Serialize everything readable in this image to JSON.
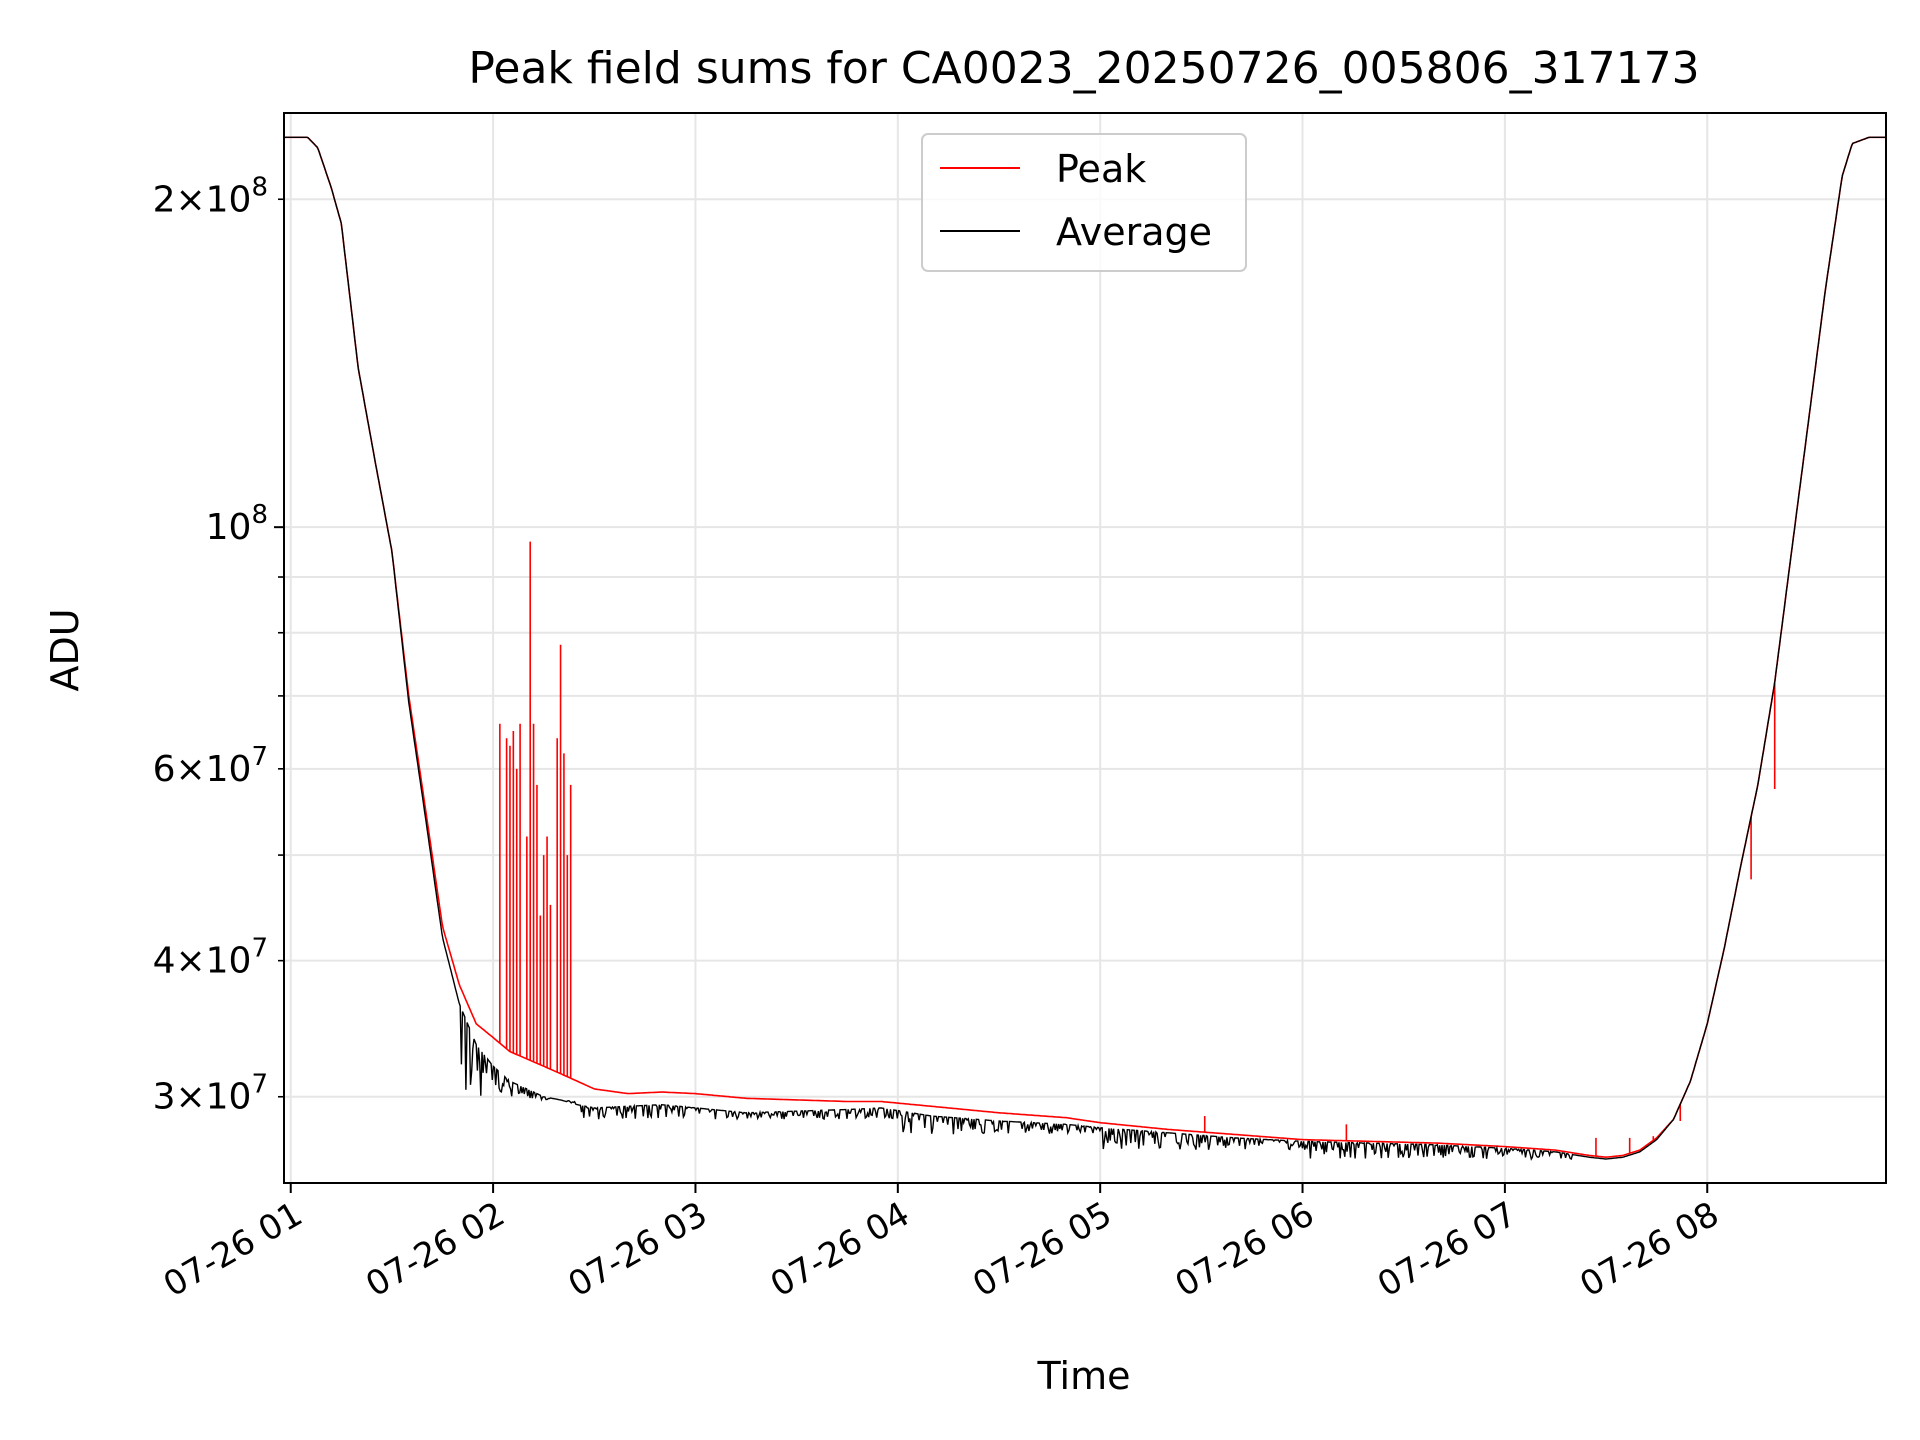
{
  "chart_data": {
    "type": "line",
    "title": "Peak field sums for CA0023_20250726_005806_317173",
    "xlabel": "Time",
    "ylabel": "ADU",
    "yscale": "log",
    "ylim": [
      25000000,
      240000000
    ],
    "xlim": [
      "2025-07-26 00:58",
      "2025-07-26 08:53"
    ],
    "grid": true,
    "legend_position": "upper center",
    "x_ticks": [
      {
        "x": "2025-07-26 01:00",
        "label": "07-26 01"
      },
      {
        "x": "2025-07-26 02:00",
        "label": "07-26 02"
      },
      {
        "x": "2025-07-26 03:00",
        "label": "07-26 03"
      },
      {
        "x": "2025-07-26 04:00",
        "label": "07-26 04"
      },
      {
        "x": "2025-07-26 05:00",
        "label": "07-26 05"
      },
      {
        "x": "2025-07-26 06:00",
        "label": "07-26 06"
      },
      {
        "x": "2025-07-26 07:00",
        "label": "07-26 07"
      },
      {
        "x": "2025-07-26 08:00",
        "label": "07-26 08"
      }
    ],
    "y_major_ticks": [
      {
        "value": 100000000,
        "base": "10",
        "exp": "8"
      }
    ],
    "y_minor_ticks": [
      {
        "value": 30000000,
        "mant": "3",
        "exp": "7"
      },
      {
        "value": 40000000,
        "mant": "4",
        "exp": "7"
      },
      {
        "value": 50000000,
        "mant": "",
        "exp": ""
      },
      {
        "value": 60000000,
        "mant": "6",
        "exp": "7"
      },
      {
        "value": 70000000,
        "mant": "",
        "exp": ""
      },
      {
        "value": 80000000,
        "mant": "",
        "exp": ""
      },
      {
        "value": 90000000,
        "mant": "",
        "exp": ""
      },
      {
        "value": 200000000,
        "mant": "2",
        "exp": "8"
      }
    ],
    "series": [
      {
        "name": "Peak",
        "color": "#ff0000",
        "x": [
          "2025-07-26 00:58",
          "2025-07-26 01:05",
          "2025-07-26 01:08",
          "2025-07-26 01:12",
          "2025-07-26 01:15",
          "2025-07-26 01:20",
          "2025-07-26 01:25",
          "2025-07-26 01:30",
          "2025-07-26 01:35",
          "2025-07-26 01:40",
          "2025-07-26 01:45",
          "2025-07-26 01:50",
          "2025-07-26 01:55",
          "2025-07-26 02:00",
          "2025-07-26 02:05",
          "2025-07-26 02:10",
          "2025-07-26 02:15",
          "2025-07-26 02:20",
          "2025-07-26 02:25",
          "2025-07-26 02:30",
          "2025-07-26 02:40",
          "2025-07-26 02:50",
          "2025-07-26 03:00",
          "2025-07-26 03:15",
          "2025-07-26 03:30",
          "2025-07-26 03:45",
          "2025-07-26 03:55",
          "2025-07-26 04:10",
          "2025-07-26 04:30",
          "2025-07-26 04:50",
          "2025-07-26 05:00",
          "2025-07-26 05:20",
          "2025-07-26 05:40",
          "2025-07-26 06:00",
          "2025-07-26 06:20",
          "2025-07-26 06:40",
          "2025-07-26 07:00",
          "2025-07-26 07:15",
          "2025-07-26 07:25",
          "2025-07-26 07:30",
          "2025-07-26 07:35",
          "2025-07-26 07:40",
          "2025-07-26 07:45",
          "2025-07-26 07:50",
          "2025-07-26 07:55",
          "2025-07-26 08:00",
          "2025-07-26 08:05",
          "2025-07-26 08:10",
          "2025-07-26 08:15",
          "2025-07-26 08:20",
          "2025-07-26 08:25",
          "2025-07-26 08:30",
          "2025-07-26 08:35",
          "2025-07-26 08:40",
          "2025-07-26 08:43",
          "2025-07-26 08:48",
          "2025-07-26 08:53"
        ],
        "y": [
          228000000,
          228000000,
          223000000,
          205000000,
          190000000,
          140000000,
          115000000,
          95000000,
          70000000,
          55000000,
          43000000,
          38000000,
          35000000,
          34000000,
          33000000,
          32500000,
          32000000,
          31500000,
          31000000,
          30500000,
          30200000,
          30300000,
          30200000,
          29900000,
          29800000,
          29700000,
          29700000,
          29400000,
          29000000,
          28700000,
          28400000,
          28000000,
          27700000,
          27400000,
          27300000,
          27200000,
          27000000,
          26800000,
          26500000,
          26400000,
          26500000,
          26800000,
          27500000,
          28600000,
          31000000,
          35000000,
          41000000,
          49000000,
          58000000,
          72000000,
          95000000,
          125000000,
          165000000,
          210000000,
          225000000,
          228000000,
          228000000
        ],
        "spikes": [
          {
            "x": "2025-07-26 02:02",
            "y": 66000000
          },
          {
            "x": "2025-07-26 02:04",
            "y": 64000000
          },
          {
            "x": "2025-07-26 02:05",
            "y": 63000000
          },
          {
            "x": "2025-07-26 02:06",
            "y": 65000000
          },
          {
            "x": "2025-07-26 02:07",
            "y": 60000000
          },
          {
            "x": "2025-07-26 02:08",
            "y": 66000000
          },
          {
            "x": "2025-07-26 02:10",
            "y": 52000000
          },
          {
            "x": "2025-07-26 02:11",
            "y": 97000000
          },
          {
            "x": "2025-07-26 02:12",
            "y": 66000000
          },
          {
            "x": "2025-07-26 02:13",
            "y": 58000000
          },
          {
            "x": "2025-07-26 02:14",
            "y": 44000000
          },
          {
            "x": "2025-07-26 02:15",
            "y": 50000000
          },
          {
            "x": "2025-07-26 02:16",
            "y": 52000000
          },
          {
            "x": "2025-07-26 02:17",
            "y": 45000000
          },
          {
            "x": "2025-07-26 02:19",
            "y": 64000000
          },
          {
            "x": "2025-07-26 02:20",
            "y": 78000000
          },
          {
            "x": "2025-07-26 02:21",
            "y": 62000000
          },
          {
            "x": "2025-07-26 02:22",
            "y": 50000000
          },
          {
            "x": "2025-07-26 02:23",
            "y": 58000000
          },
          {
            "x": "2025-07-26 05:31",
            "y": 28800000
          },
          {
            "x": "2025-07-26 06:13",
            "y": 28300000
          },
          {
            "x": "2025-07-26 07:27",
            "y": 27500000
          },
          {
            "x": "2025-07-26 07:37",
            "y": 27500000
          },
          {
            "x": "2025-07-26 07:44",
            "y": 27600000
          },
          {
            "x": "2025-07-26 07:52",
            "y": 28500000
          },
          {
            "x": "2025-07-26 08:13",
            "y": 47500000
          },
          {
            "x": "2025-07-26 08:20",
            "y": 57500000
          }
        ]
      },
      {
        "name": "Average",
        "color": "#000000",
        "x": [
          "2025-07-26 00:58",
          "2025-07-26 01:05",
          "2025-07-26 01:08",
          "2025-07-26 01:12",
          "2025-07-26 01:15",
          "2025-07-26 01:20",
          "2025-07-26 01:25",
          "2025-07-26 01:30",
          "2025-07-26 01:35",
          "2025-07-26 01:40",
          "2025-07-26 01:45",
          "2025-07-26 01:50",
          "2025-07-26 01:55",
          "2025-07-26 02:00",
          "2025-07-26 02:05",
          "2025-07-26 02:10",
          "2025-07-26 02:15",
          "2025-07-26 02:20",
          "2025-07-26 02:25",
          "2025-07-26 02:30",
          "2025-07-26 02:40",
          "2025-07-26 02:50",
          "2025-07-26 03:00",
          "2025-07-26 03:15",
          "2025-07-26 03:30",
          "2025-07-26 03:45",
          "2025-07-26 03:55",
          "2025-07-26 04:10",
          "2025-07-26 04:30",
          "2025-07-26 04:50",
          "2025-07-26 05:00",
          "2025-07-26 05:20",
          "2025-07-26 05:40",
          "2025-07-26 06:00",
          "2025-07-26 06:20",
          "2025-07-26 06:40",
          "2025-07-26 07:00",
          "2025-07-26 07:15",
          "2025-07-26 07:25",
          "2025-07-26 07:30",
          "2025-07-26 07:35",
          "2025-07-26 07:40",
          "2025-07-26 07:45",
          "2025-07-26 07:50",
          "2025-07-26 07:55",
          "2025-07-26 08:00",
          "2025-07-26 08:05",
          "2025-07-26 08:10",
          "2025-07-26 08:15",
          "2025-07-26 08:20",
          "2025-07-26 08:25",
          "2025-07-26 08:30",
          "2025-07-26 08:35",
          "2025-07-26 08:40",
          "2025-07-26 08:43",
          "2025-07-26 08:48",
          "2025-07-26 08:53"
        ],
        "y": [
          228000000,
          228000000,
          223000000,
          205000000,
          190000000,
          140000000,
          115000000,
          95000000,
          69000000,
          54000000,
          42000000,
          36500000,
          33500000,
          32000000,
          31000000,
          30500000,
          30000000,
          29800000,
          29500000,
          29300000,
          29400000,
          29500000,
          29300000,
          29000000,
          29100000,
          29200000,
          29300000,
          28800000,
          28500000,
          28300000,
          28100000,
          27800000,
          27500000,
          27300000,
          27200000,
          27100000,
          26900000,
          26700000,
          26400000,
          26300000,
          26400000,
          26700000,
          27400000,
          28600000,
          31000000,
          35000000,
          41000000,
          49000000,
          58000000,
          72000000,
          95000000,
          125000000,
          165000000,
          210000000,
          225000000,
          228000000,
          228000000
        ],
        "noise_band": [
          {
            "from": "2025-07-26 01:50",
            "to": "2025-07-26 02:25",
            "low": 29800000
          },
          {
            "from": "2025-07-26 02:25",
            "to": "2025-07-26 04:00",
            "low": 28600000
          },
          {
            "from": "2025-07-26 04:00",
            "to": "2025-07-26 05:00",
            "low": 27700000
          },
          {
            "from": "2025-07-26 05:00",
            "to": "2025-07-26 06:00",
            "low": 26800000
          },
          {
            "from": "2025-07-26 06:00",
            "to": "2025-07-26 07:20",
            "low": 26300000
          }
        ]
      }
    ]
  }
}
